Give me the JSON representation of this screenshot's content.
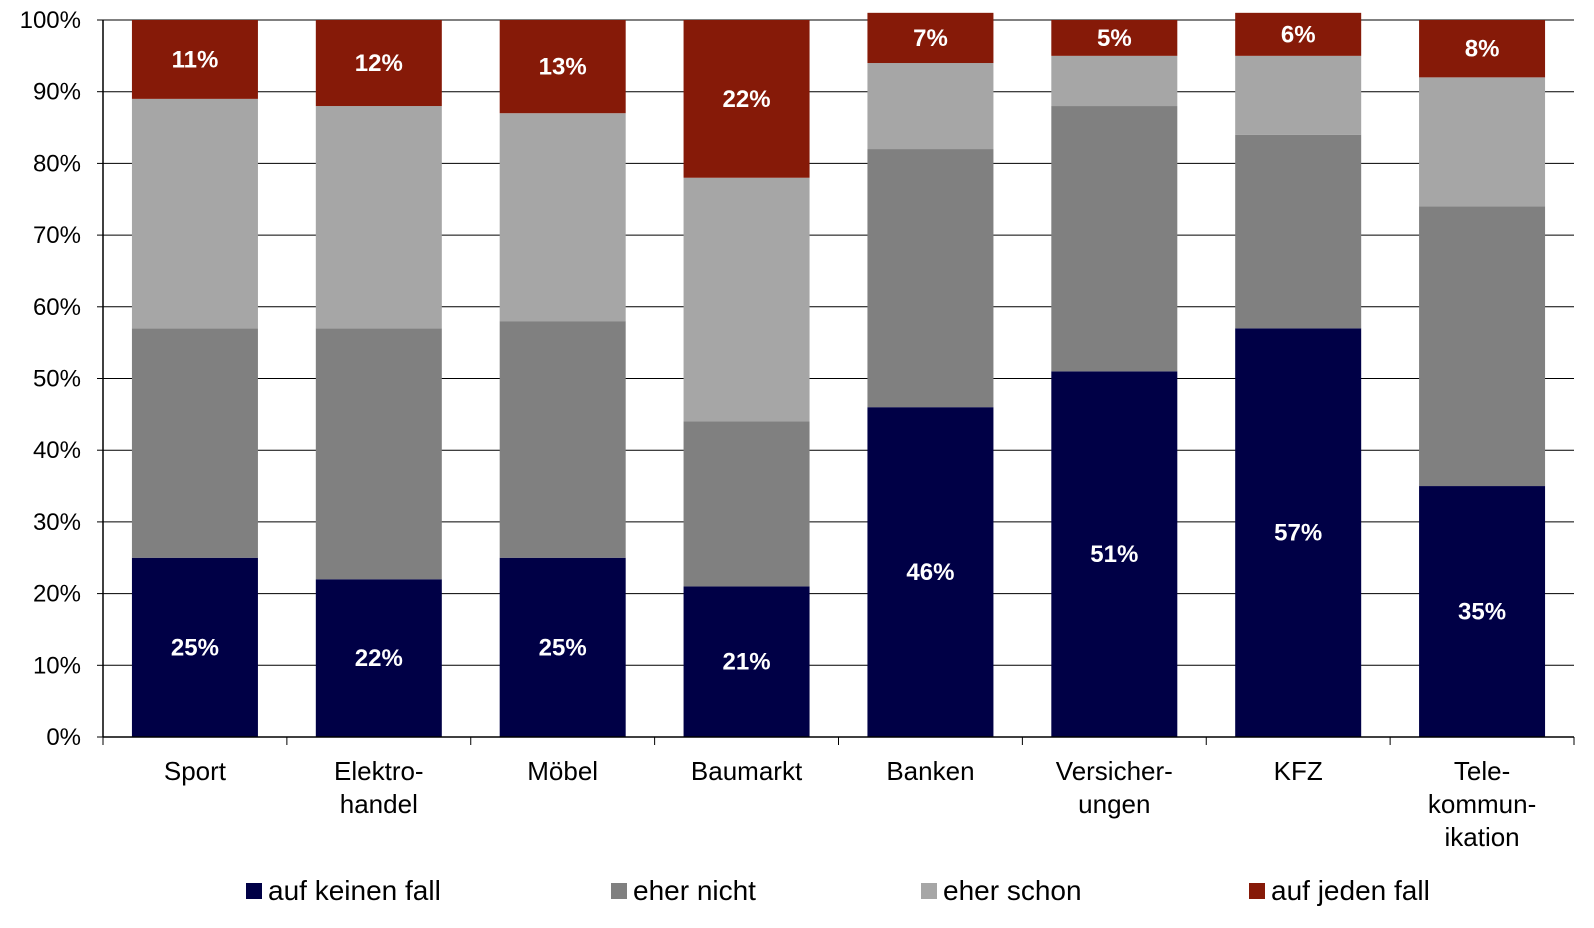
{
  "chart_data": {
    "type": "bar",
    "stacked": true,
    "percent_stacked": true,
    "categories": [
      [
        "Sport"
      ],
      [
        "Elektro-",
        "handel"
      ],
      [
        "Möbel"
      ],
      [
        "Baumarkt"
      ],
      [
        "Banken"
      ],
      [
        "Versicher-",
        "ungen"
      ],
      [
        "KFZ"
      ],
      [
        "Tele-",
        "kommun-",
        "ikation"
      ]
    ],
    "series": [
      {
        "name": "auf keinen fall",
        "color": "#000046",
        "values": [
          25,
          22,
          25,
          21,
          46,
          51,
          57,
          35
        ],
        "labels": [
          "25%",
          "22%",
          "25%",
          "21%",
          "46%",
          "51%",
          "57%",
          "35%"
        ]
      },
      {
        "name": "eher nicht",
        "color": "#808080",
        "values": [
          32,
          35,
          33,
          23,
          36,
          37,
          27,
          39
        ],
        "labels": null
      },
      {
        "name": "eher schon",
        "color": "#A6A6A6",
        "values": [
          32,
          31,
          29,
          34,
          12,
          7,
          11,
          18
        ],
        "labels": null
      },
      {
        "name": "auf jeden fall",
        "color": "#861A08",
        "values": [
          11,
          12,
          13,
          22,
          7,
          5,
          6,
          8
        ],
        "labels": [
          "11%",
          "12%",
          "13%",
          "22%",
          "7%",
          "5%",
          "6%",
          "8%"
        ]
      }
    ],
    "y_ticks": [
      "0%",
      "10%",
      "20%",
      "30%",
      "40%",
      "50%",
      "60%",
      "70%",
      "80%",
      "90%",
      "100%"
    ],
    "ylim": [
      0,
      100
    ],
    "grid": true,
    "legend_position": "bottom",
    "title": "",
    "xlabel": "",
    "ylabel": ""
  }
}
